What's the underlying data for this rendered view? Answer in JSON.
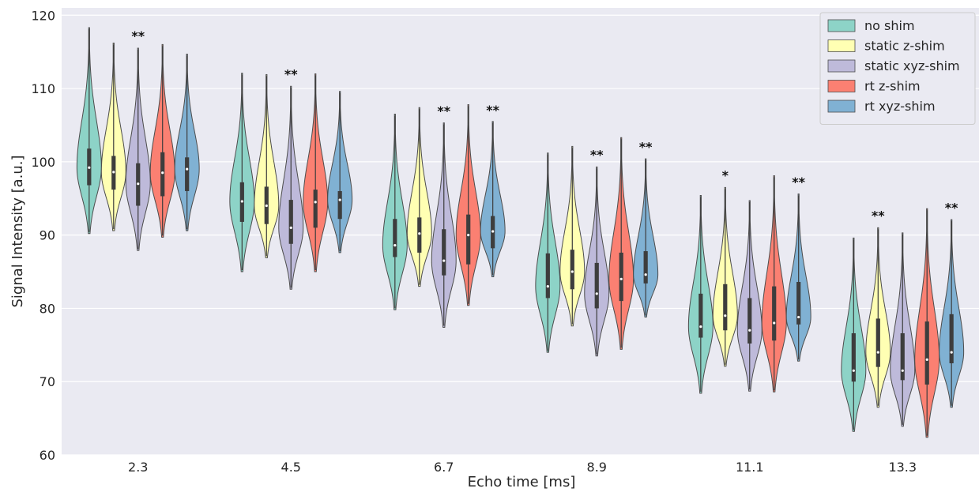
{
  "chart_data": {
    "type": "violin",
    "xlabel": "Echo time [ms]",
    "ylabel": "Signal Intensity [a.u.]",
    "ylim": [
      60,
      121
    ],
    "yticks": [
      60,
      70,
      80,
      90,
      100,
      110,
      120
    ],
    "categories": [
      "2.3",
      "4.5",
      "6.7",
      "8.9",
      "11.1",
      "13.3"
    ],
    "grid": true,
    "legend_position": "top-right",
    "series": [
      {
        "name": "no shim",
        "color": "#8dd3c7",
        "stats": [
          {
            "min": 90.2,
            "q1": 96.8,
            "median": 99.2,
            "q3": 101.8,
            "max": 118.3
          },
          {
            "min": 85.0,
            "q1": 91.8,
            "median": 94.6,
            "q3": 97.2,
            "max": 112.1
          },
          {
            "min": 79.8,
            "q1": 87.0,
            "median": 88.6,
            "q3": 92.2,
            "max": 106.5
          },
          {
            "min": 74.0,
            "q1": 81.4,
            "median": 83.0,
            "q3": 87.5,
            "max": 101.2
          },
          {
            "min": 68.4,
            "q1": 76.0,
            "median": 77.5,
            "q3": 82.0,
            "max": 95.4
          },
          {
            "min": 63.2,
            "q1": 70.0,
            "median": 71.5,
            "q3": 76.6,
            "max": 89.6
          }
        ]
      },
      {
        "name": "static z-shim",
        "color": "#ffffb3",
        "stats": [
          {
            "min": 90.6,
            "q1": 96.2,
            "median": 98.6,
            "q3": 100.8,
            "max": 116.2
          },
          {
            "min": 86.9,
            "q1": 91.5,
            "median": 94.0,
            "q3": 96.6,
            "max": 111.9
          },
          {
            "min": 83.0,
            "q1": 87.6,
            "median": 90.2,
            "q3": 92.4,
            "max": 107.4
          },
          {
            "min": 77.6,
            "q1": 82.6,
            "median": 85.0,
            "q3": 88.0,
            "max": 102.1
          },
          {
            "min": 72.1,
            "q1": 77.0,
            "median": 79.0,
            "q3": 83.3,
            "max": 96.5
          },
          {
            "min": 66.5,
            "q1": 72.0,
            "median": 74.0,
            "q3": 78.6,
            "max": 91.0
          }
        ]
      },
      {
        "name": "static xyz-shim",
        "color": "#bebada",
        "stats": [
          {
            "min": 87.9,
            "q1": 94.0,
            "median": 97.0,
            "q3": 99.8,
            "max": 115.5
          },
          {
            "min": 82.6,
            "q1": 88.8,
            "median": 91.0,
            "q3": 94.8,
            "max": 110.3
          },
          {
            "min": 77.4,
            "q1": 84.5,
            "median": 86.5,
            "q3": 90.8,
            "max": 105.3
          },
          {
            "min": 73.5,
            "q1": 80.0,
            "median": 82.0,
            "q3": 86.2,
            "max": 99.3
          },
          {
            "min": 68.7,
            "q1": 75.2,
            "median": 77.0,
            "q3": 81.4,
            "max": 94.7
          },
          {
            "min": 63.9,
            "q1": 70.2,
            "median": 71.5,
            "q3": 76.6,
            "max": 90.3
          }
        ]
      },
      {
        "name": "rt z-shim",
        "color": "#fb8072",
        "stats": [
          {
            "min": 89.7,
            "q1": 95.3,
            "median": 98.5,
            "q3": 101.3,
            "max": 116.0
          },
          {
            "min": 85.0,
            "q1": 91.0,
            "median": 94.5,
            "q3": 96.2,
            "max": 112.0
          },
          {
            "min": 80.4,
            "q1": 86.0,
            "median": 90.0,
            "q3": 92.8,
            "max": 107.8
          },
          {
            "min": 74.4,
            "q1": 81.0,
            "median": 84.0,
            "q3": 87.6,
            "max": 103.3
          },
          {
            "min": 68.6,
            "q1": 75.6,
            "median": 78.0,
            "q3": 83.0,
            "max": 98.1
          },
          {
            "min": 62.4,
            "q1": 69.6,
            "median": 73.0,
            "q3": 78.2,
            "max": 93.6
          }
        ]
      },
      {
        "name": "rt xyz-shim",
        "color": "#80b1d3",
        "stats": [
          {
            "min": 90.6,
            "q1": 96.0,
            "median": 99.0,
            "q3": 100.6,
            "max": 114.7
          },
          {
            "min": 87.6,
            "q1": 92.2,
            "median": 94.8,
            "q3": 96.0,
            "max": 109.6
          },
          {
            "min": 84.3,
            "q1": 88.2,
            "median": 90.5,
            "q3": 92.6,
            "max": 105.5
          },
          {
            "min": 78.8,
            "q1": 83.4,
            "median": 84.6,
            "q3": 87.8,
            "max": 100.4
          },
          {
            "min": 72.8,
            "q1": 77.8,
            "median": 78.8,
            "q3": 83.6,
            "max": 95.6
          },
          {
            "min": 66.5,
            "q1": 72.5,
            "median": 74.0,
            "q3": 79.2,
            "max": 92.1
          }
        ]
      }
    ],
    "annotations": [
      {
        "text": "**",
        "category": "2.3",
        "series": "static xyz-shim",
        "y": 117.1
      },
      {
        "text": "**",
        "category": "4.5",
        "series": "static xyz-shim",
        "y": 111.9
      },
      {
        "text": "**",
        "category": "6.7",
        "series": "static xyz-shim",
        "y": 106.9
      },
      {
        "text": "**",
        "category": "6.7",
        "series": "rt xyz-shim",
        "y": 107.0
      },
      {
        "text": "**",
        "category": "8.9",
        "series": "static xyz-shim",
        "y": 100.9
      },
      {
        "text": "**",
        "category": "8.9",
        "series": "rt xyz-shim",
        "y": 102.0
      },
      {
        "text": "*",
        "category": "11.1",
        "series": "static z-shim",
        "y": 98.1
      },
      {
        "text": "**",
        "category": "11.1",
        "series": "rt xyz-shim",
        "y": 97.2
      },
      {
        "text": "**",
        "category": "13.3",
        "series": "static z-shim",
        "y": 92.6
      },
      {
        "text": "**",
        "category": "13.3",
        "series": "rt xyz-shim",
        "y": 93.7
      }
    ]
  }
}
